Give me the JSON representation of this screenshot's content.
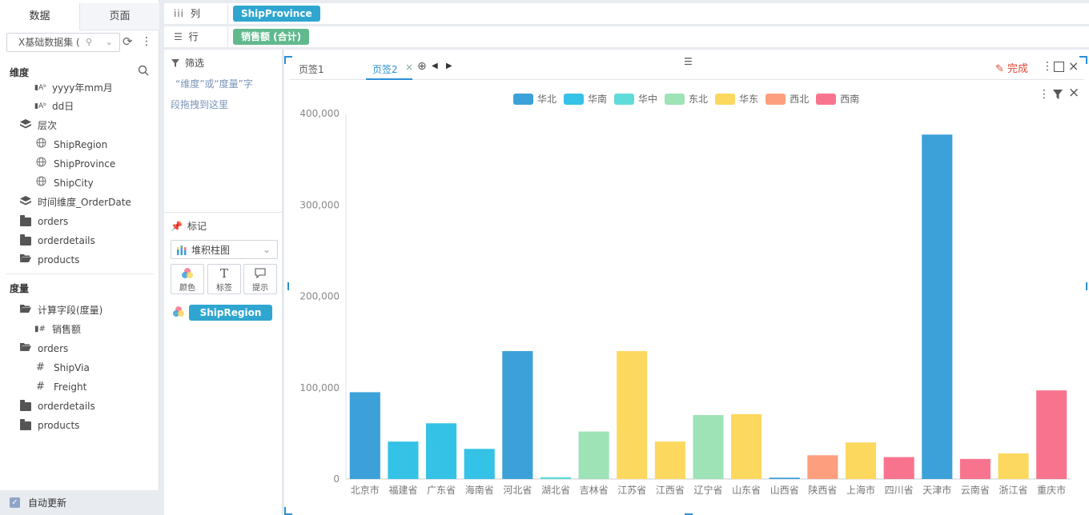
{
  "left_panel": {
    "tabs": [
      {
        "label": "数据"
      },
      {
        "label": "页面"
      }
    ],
    "dataset": "X基础数据集 (",
    "dimensions_title": "维度",
    "dimension_items": [
      {
        "label": "yyyy年mm月",
        "icon": "date-field-icon",
        "glyph": "ᴮᴬ"
      },
      {
        "label": "dd日",
        "icon": "date-field-icon",
        "glyph": "ᴮᴬ"
      },
      {
        "label": "层次",
        "icon": "layers-icon"
      },
      {
        "label": "ShipRegion",
        "icon": "globe-icon"
      },
      {
        "label": "ShipProvince",
        "icon": "globe-icon"
      },
      {
        "label": "ShipCity",
        "icon": "globe-icon"
      },
      {
        "label": "时间维度_OrderDate",
        "icon": "layers-icon"
      },
      {
        "label": "orders",
        "icon": "folder-icon"
      },
      {
        "label": "orderdetails",
        "icon": "folder-icon"
      },
      {
        "label": "products",
        "icon": "folder-open-icon"
      }
    ],
    "measures_title": "度量",
    "measure_items": [
      {
        "label": "计算字段(度量)",
        "icon": "folder-open-icon"
      },
      {
        "label": "销售额",
        "icon": "calc-field-icon"
      },
      {
        "label": "orders",
        "icon": "folder-open-icon"
      },
      {
        "label": "ShipVia",
        "icon": "hash-icon"
      },
      {
        "label": "Freight",
        "icon": "hash-icon"
      },
      {
        "label": "orderdetails",
        "icon": "folder-icon"
      },
      {
        "label": "products",
        "icon": "folder-icon"
      }
    ],
    "auto_update": "自动更新"
  },
  "shelves": {
    "columns_label": "列",
    "columns_pill": "ShipProvince",
    "rows_label": "行",
    "rows_pill": "销售额 (合计)"
  },
  "filter_panel": {
    "title": "筛选",
    "hint_line1": "“维度”或“度量”字",
    "hint_line2": "段拖拽到这里"
  },
  "marks_panel": {
    "title": "标记",
    "chart_type": "堆积柱图",
    "buttons": [
      {
        "label": "颜色"
      },
      {
        "label": "标签"
      },
      {
        "label": "提示"
      }
    ],
    "color_pill": "ShipRegion"
  },
  "canvas": {
    "tabs": [
      {
        "label": "页签1"
      },
      {
        "label": "页签2"
      }
    ],
    "done_label": "完成"
  },
  "colors": {
    "华北": "#3ba1d8",
    "华南": "#34c2e6",
    "华中": "#5fdbd9",
    "东北": "#9de3b6",
    "华东": "#fcd85f",
    "西北": "#fd9f7f",
    "西南": "#f8748e",
    "accent": "#2d8fd5",
    "pill_blue": "#2fa6cf",
    "pill_green": "#61b98d"
  },
  "chart_data": {
    "type": "bar",
    "legend": [
      "华北",
      "华南",
      "华中",
      "东北",
      "华东",
      "西北",
      "西南"
    ],
    "legend_position": "top-center",
    "categories": [
      "北京市",
      "福建省",
      "广东省",
      "海南省",
      "河北省",
      "湖北省",
      "吉林省",
      "江苏省",
      "江西省",
      "辽宁省",
      "山东省",
      "山西省",
      "陕西省",
      "上海市",
      "四川省",
      "天津市",
      "云南省",
      "浙江省",
      "重庆市"
    ],
    "regions": [
      "华北",
      "华南",
      "华南",
      "华南",
      "华北",
      "华中",
      "东北",
      "华东",
      "华东",
      "东北",
      "华东",
      "华北",
      "西北",
      "华东",
      "西南",
      "华北",
      "西南",
      "华东",
      "西南"
    ],
    "values": [
      95000,
      41000,
      61000,
      33000,
      140000,
      2000,
      52000,
      140000,
      41000,
      70000,
      71000,
      1500,
      26000,
      40000,
      24000,
      377000,
      22000,
      28000,
      97000
    ],
    "y_ticks": [
      "400,000",
      "300,000",
      "200,000",
      "100,000",
      "0"
    ],
    "ylim": [
      0,
      400000
    ],
    "grid": false
  }
}
